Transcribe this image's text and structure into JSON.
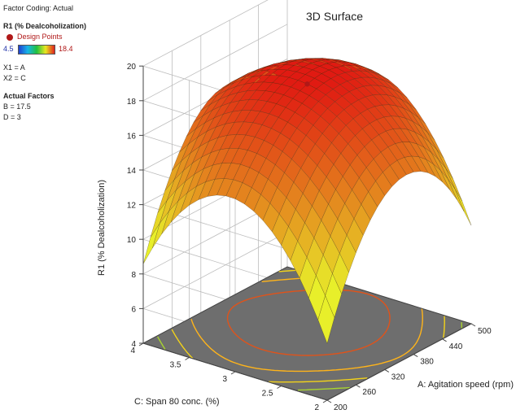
{
  "panel": {
    "factor_coding": "Factor Coding: Actual",
    "response_title": "R1 (% Dealcoholization)",
    "design_points_label": "Design Points",
    "colorbar_min": "4.5",
    "colorbar_max": "18.4",
    "x1_label": "X1 = A",
    "x2_label": "X2 = C",
    "actual_factors_title": "Actual Factors",
    "factor_b": "B = 17.5",
    "factor_d": "D = 3"
  },
  "colors": {
    "surface_low": "#e8ef2a",
    "surface_high": "#e01a12",
    "floor": "#6e6e6e",
    "design_point": "#b01818"
  },
  "chart_data": {
    "type": "surface3d",
    "title": "3D Surface",
    "xlabel": "A: Agitation speed (rpm)",
    "ylabel": "C: Span 80 conc. (%)",
    "zlabel": "R1 (% Dealcoholization)",
    "x_range": [
      200,
      500
    ],
    "y_range": [
      2,
      4
    ],
    "z_range": [
      4,
      20
    ],
    "x_ticks": [
      "200",
      "260",
      "320",
      "380",
      "440",
      "500"
    ],
    "y_ticks": [
      "2",
      "2.5",
      "3",
      "3.5",
      "4"
    ],
    "z_ticks": [
      "4",
      "6",
      "8",
      "10",
      "12",
      "14",
      "16",
      "18",
      "20"
    ],
    "surface_model": {
      "form": "quadratic",
      "center": {
        "x": 350,
        "y": 3
      },
      "peak_value": 18.4,
      "corner_values": {
        "x200_y2": 10.3,
        "x500_y2": 12.7,
        "x200_y4": 11.6,
        "x500_y4": 14.8
      }
    },
    "design_points": [
      {
        "x": 350,
        "y": 3,
        "z": 18.4
      }
    ],
    "contours_on_floor": true,
    "grid": true,
    "colorbar_range": [
      4.5,
      18.4
    ]
  }
}
